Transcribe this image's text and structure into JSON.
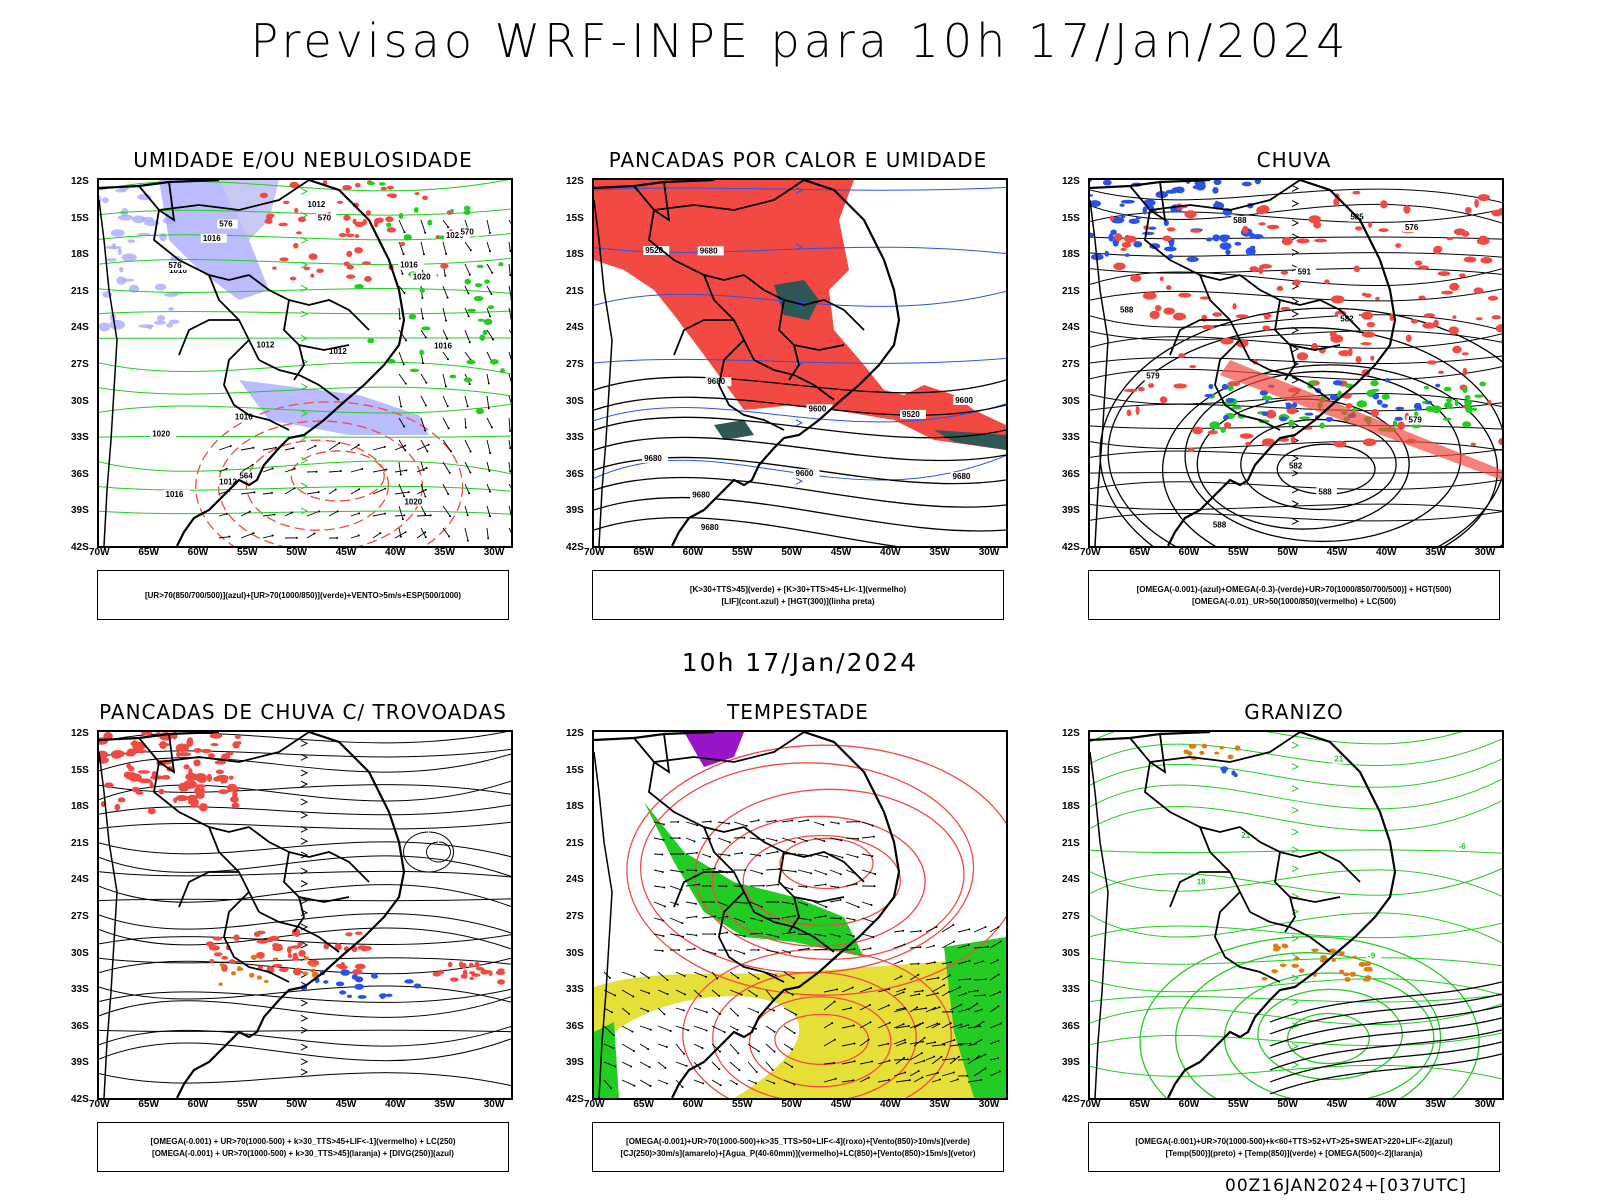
{
  "title": "Previsao WRF-INPE  para 10h 17/Jan/2024",
  "subtitle": "10h 17/Jan/2024",
  "footer": "00Z16JAN2024+[037UTC]",
  "colors": {
    "red": "#f24a42",
    "blue": "#2a52e8",
    "green": "#22cc22",
    "lavender": "#aaaaff",
    "yellow": "#e6df38",
    "purple": "#9a14c8",
    "orange": "#e07b10",
    "darkteal": "#2f5753"
  },
  "lat_ticks": [
    "12S",
    "15S",
    "18S",
    "21S",
    "24S",
    "27S",
    "30S",
    "33S",
    "36S",
    "39S",
    "42S"
  ],
  "lon_ticks": [
    "70W",
    "65W",
    "60W",
    "55W",
    "50W",
    "45W",
    "40W",
    "35W",
    "30W"
  ],
  "panels": [
    {
      "title": "UMIDADE E/OU NEBULOSIDADE",
      "legend": [
        "[UR>70(850/700/500)](azul)+[UR>70(1000/850)](verde)+VENTO>5m/s+ESP(500/1000)"
      ],
      "contour_labels": [
        "1016",
        "1016",
        "1012",
        "1020",
        "1020",
        "1016",
        "1012",
        "1012",
        "1016",
        "1020",
        "1016",
        "576",
        "576",
        "570",
        "564",
        "570",
        "1016",
        "1020",
        "1012"
      ]
    },
    {
      "title": "PANCADAS POR CALOR E UMIDADE",
      "legend": [
        "[K>30+TTS>45](verde) + [K>30+TTS>45+LI<-1](vermelho)",
        "[LIF](cont.azul) + [HGT(300)](linha preta)"
      ],
      "contour_labels": [
        "9680",
        "9680",
        "9680",
        "9680",
        "9680",
        "9680",
        "9600",
        "9600",
        "9520",
        "9600",
        "9520"
      ]
    },
    {
      "title": "CHUVA",
      "legend": [
        "[OMEGA(-0.001)-(azul)+OMEGA(-0.3)-(verde)+UR>70(1000/850/700/500)] + HGT(500)",
        "[OMEGA(-0.01)_UR>50(1000/850)(vermelho) + LC(500)"
      ],
      "contour_labels": [
        "588",
        "588",
        "591",
        "585",
        "588",
        "588",
        "582",
        "582",
        "579",
        "579",
        "576"
      ]
    },
    {
      "title": "PANCADAS DE CHUVA C/ TROVOADAS",
      "legend": [
        "[OMEGA(-0.001) + UR>70(1000-500) + k>30_TTS>45+LIF<-1](vermelho) + LC(250)",
        "[OMEGA(-0.001) + UR>70(1000-500) + k>30_TTS>45](laranja) + [DIVG(250)](azul)"
      ],
      "contour_labels": []
    },
    {
      "title": "TEMPESTADE",
      "legend": [
        "[OMEGA(-0.001)+UR>70(1000-500)+k>35_TTS>50+LIF<-4](roxo)+[Vento(850)>10m/s](verde)",
        "[CJ(250)>30m/s](amarelo)+[Agua_P(40-60mm)](vermelho)+LC(850)+[Vento(850)>15m/s](vetor)"
      ],
      "contour_labels": []
    },
    {
      "title": "GRANIZO",
      "legend": [
        "[OMEGA(-0.001)+UR>70(1000-500)+k<60+TTS>52+VT>25+SWEAT>220+LIF<-2](azul)",
        "[Temp(500)](preto) + [Temp(850)](verde) + [OMEGA(500)<-2](laranja)"
      ],
      "contour_labels": [
        "21",
        "21",
        "18",
        "-6",
        "-9"
      ]
    }
  ]
}
